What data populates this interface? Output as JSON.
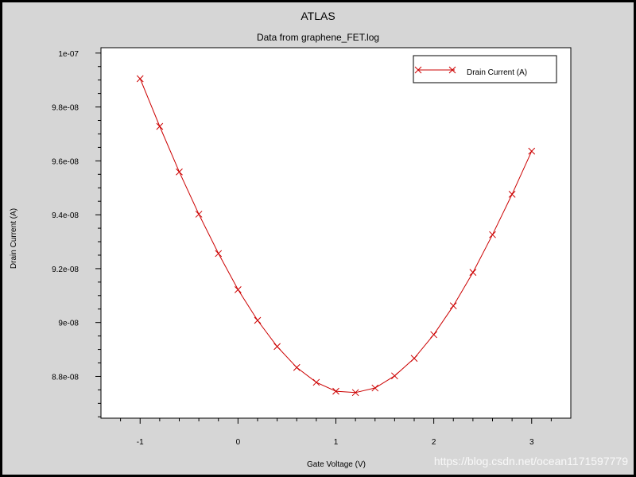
{
  "window": {
    "title": "ATLAS",
    "subtitle": "Data from graphene_FET.log"
  },
  "watermark": "https://blog.csdn.net/ocean1171597779",
  "colors": {
    "background": "#d6d6d6",
    "plot_area": "#ffffff",
    "series": "#cc0000",
    "frame": "#000000"
  },
  "chart_data": {
    "type": "line",
    "title": "ATLAS",
    "subtitle": "Data from graphene_FET.log",
    "xlabel": "Gate Voltage (V)",
    "ylabel": "Drain Current (A)",
    "xlim": [
      -1.4,
      3.4
    ],
    "ylim": [
      8.645e-08,
      1.002e-07
    ],
    "x_ticks": [
      -1,
      0,
      1,
      2,
      3
    ],
    "x_tick_labels": [
      "-1",
      "0",
      "1",
      "2",
      "3"
    ],
    "y_ticks": [
      8.8e-08,
      9e-08,
      9.2e-08,
      9.4e-08,
      9.6e-08,
      9.8e-08,
      1e-07
    ],
    "y_tick_labels": [
      "8.8e-08",
      "9e-08",
      "9.2e-08",
      "9.4e-08",
      "9.6e-08",
      "9.8e-08",
      "1e-07"
    ],
    "grid": false,
    "legend_position": "top-right",
    "marker": "x",
    "series": [
      {
        "name": "Drain Current (A)",
        "x": [
          -1.0,
          -0.8,
          -0.6,
          -0.4,
          -0.2,
          0.0,
          0.2,
          0.4,
          0.6,
          0.8,
          1.0,
          1.2,
          1.4,
          1.6,
          1.8,
          2.0,
          2.2,
          2.4,
          2.6,
          2.8,
          3.0
        ],
        "y": [
          9.905e-08,
          9.728e-08,
          9.559e-08,
          9.402e-08,
          9.256e-08,
          9.122e-08,
          9.008e-08,
          8.911e-08,
          8.833e-08,
          8.778e-08,
          8.745e-08,
          8.74e-08,
          8.757e-08,
          8.802e-08,
          8.867e-08,
          8.955e-08,
          9.062e-08,
          9.186e-08,
          9.326e-08,
          9.476e-08,
          9.636e-08
        ]
      }
    ]
  }
}
